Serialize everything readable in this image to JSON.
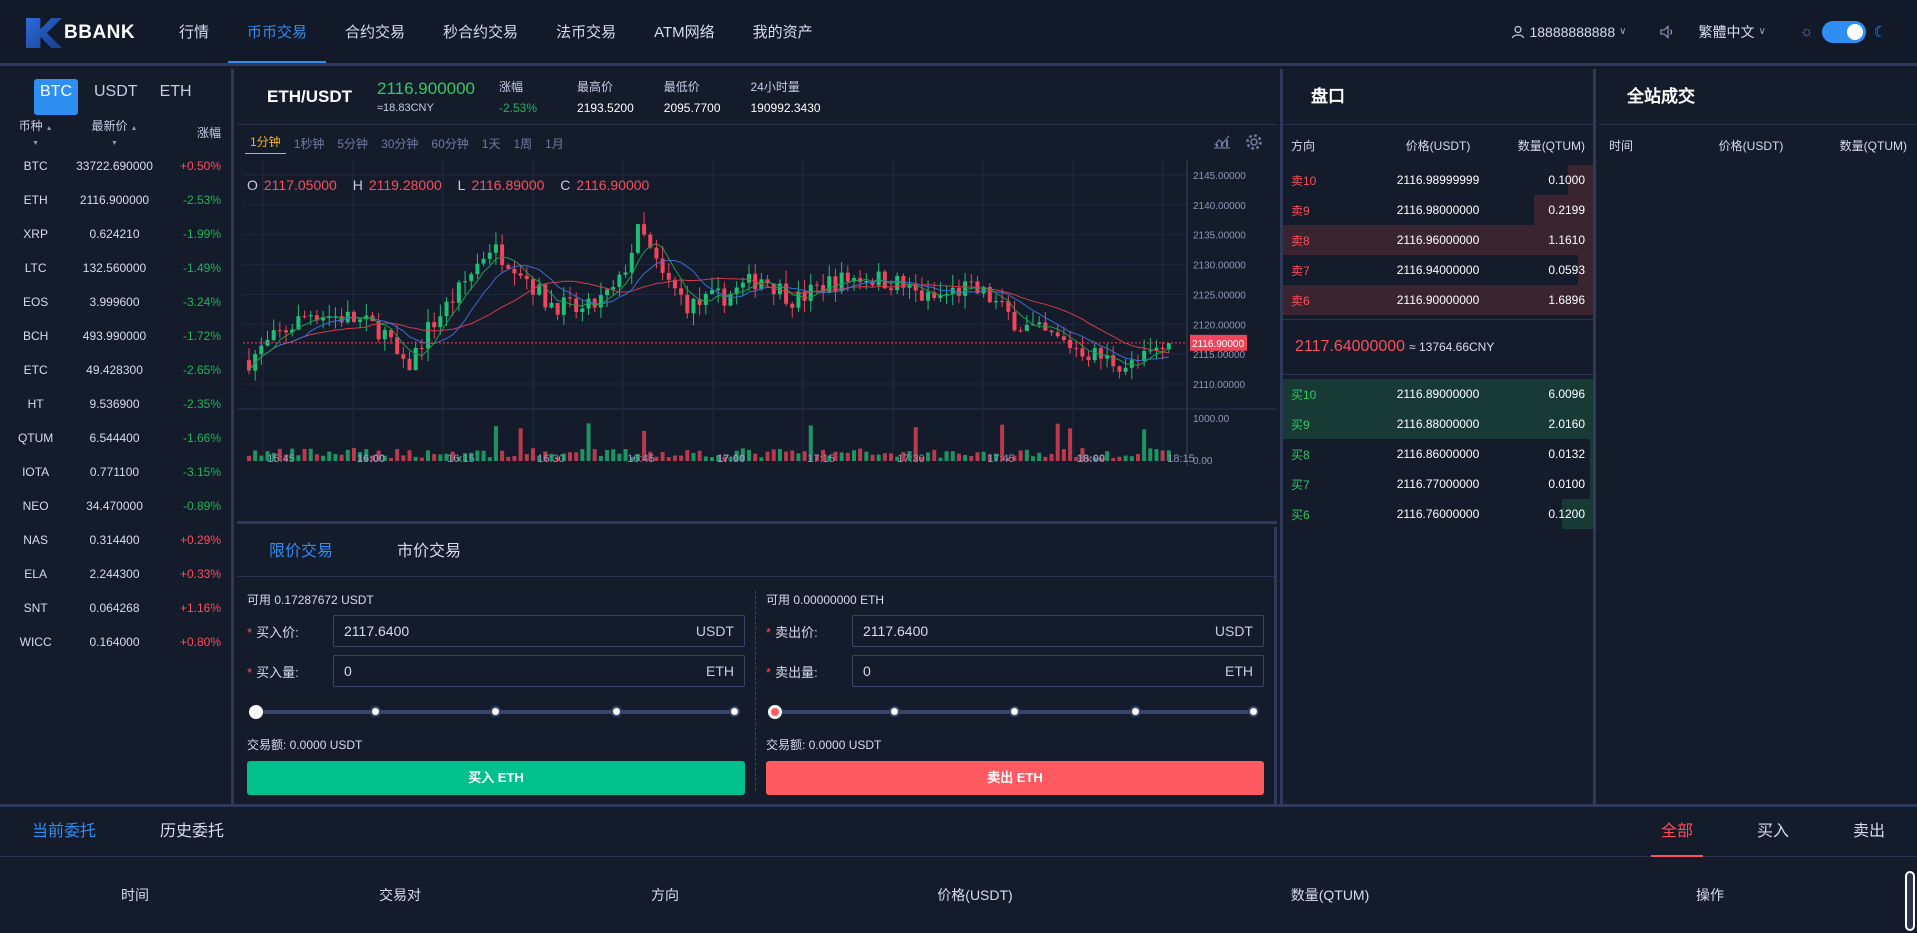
{
  "header": {
    "logo_text": "BBANK",
    "nav": [
      "行情",
      "币币交易",
      "合约交易",
      "秒合约交易",
      "法币交易",
      "ATM网络",
      "我的资产"
    ],
    "active_nav": 1,
    "user": "18888888888",
    "language": "繁體中文"
  },
  "market": {
    "tabs": [
      "BTC",
      "USDT",
      "ETH"
    ],
    "active_tab": 0,
    "columns": [
      "币种",
      "最新价",
      "涨幅"
    ],
    "rows": [
      {
        "sym": "BTC",
        "price": "33722.690000",
        "chg": "+0.50%",
        "dir": "up"
      },
      {
        "sym": "ETH",
        "price": "2116.900000",
        "chg": "-2.53%",
        "dir": "down"
      },
      {
        "sym": "XRP",
        "price": "0.624210",
        "chg": "-1.99%",
        "dir": "down"
      },
      {
        "sym": "LTC",
        "price": "132.560000",
        "chg": "-1.49%",
        "dir": "down"
      },
      {
        "sym": "EOS",
        "price": "3.999600",
        "chg": "-3.24%",
        "dir": "down"
      },
      {
        "sym": "BCH",
        "price": "493.990000",
        "chg": "-1.72%",
        "dir": "down"
      },
      {
        "sym": "ETC",
        "price": "49.428300",
        "chg": "-2.65%",
        "dir": "down"
      },
      {
        "sym": "HT",
        "price": "9.536900",
        "chg": "-2.35%",
        "dir": "down"
      },
      {
        "sym": "QTUM",
        "price": "6.544400",
        "chg": "-1.66%",
        "dir": "down"
      },
      {
        "sym": "IOTA",
        "price": "0.771100",
        "chg": "-3.15%",
        "dir": "down"
      },
      {
        "sym": "NEO",
        "price": "34.470000",
        "chg": "-0.89%",
        "dir": "down"
      },
      {
        "sym": "NAS",
        "price": "0.314400",
        "chg": "+0.29%",
        "dir": "up"
      },
      {
        "sym": "ELA",
        "price": "2.244300",
        "chg": "+0.33%",
        "dir": "up"
      },
      {
        "sym": "SNT",
        "price": "0.064268",
        "chg": "+1.16%",
        "dir": "up"
      },
      {
        "sym": "WICC",
        "price": "0.164000",
        "chg": "+0.80%",
        "dir": "up"
      }
    ]
  },
  "ticker": {
    "pair": "ETH/USDT",
    "price": "2116.900000",
    "cny": "≈18.83CNY",
    "change_label": "涨幅",
    "change": "-2.53%",
    "high_label": "最高价",
    "high": "2193.5200",
    "low_label": "最低价",
    "low": "2095.7700",
    "vol_label": "24小时量",
    "vol": "190992.3430"
  },
  "chart": {
    "intervals": [
      "1分钟",
      "1秒钟",
      "5分钟",
      "30分钟",
      "60分钟",
      "1天",
      "1周",
      "1月"
    ],
    "active_interval": 0,
    "ohlc": {
      "o": "2117.05000",
      "h": "2119.28000",
      "l": "2116.89000",
      "c": "2116.90000"
    },
    "last_label": "2116.90000",
    "last_value": 2116.9,
    "price_ticks": [
      "2145.00000",
      "2140.00000",
      "2135.00000",
      "2130.00000",
      "2125.00000",
      "2120.00000",
      "2115.00000",
      "2110.00000"
    ],
    "price_tick_values": [
      2145,
      2140,
      2135,
      2130,
      2125,
      2120,
      2115,
      2110
    ],
    "volume_ticks": [
      "1000.00",
      "0.00"
    ],
    "time_ticks": [
      "15:45",
      "16:00",
      "16:15",
      "16:30",
      "16:45",
      "17:00",
      "17:15",
      "17:30",
      "17:45",
      "18:00",
      "18:15"
    ],
    "colors": {
      "up": "#1fbf75",
      "down": "#f0455a",
      "ma1": "#d43a4a",
      "ma2": "#3b6fd0",
      "ma3": "#1f9e4a"
    }
  },
  "trade": {
    "tabs": [
      "限价交易",
      "市价交易"
    ],
    "active_tab": 0,
    "buy": {
      "avail": "可用 0.17287672 USDT",
      "price_label": "买入价:",
      "price": "2117.6400",
      "price_unit": "USDT",
      "qty_label": "买入量:",
      "qty": "0",
      "qty_unit": "ETH",
      "amount": "交易额: 0.0000 USDT",
      "button": "买入 ETH"
    },
    "sell": {
      "avail": "可用 0.00000000 ETH",
      "price_label": "卖出价:",
      "price": "2117.6400",
      "price_unit": "USDT",
      "qty_label": "卖出量:",
      "qty": "0",
      "qty_unit": "ETH",
      "amount": "交易额: 0.0000 USDT",
      "button": "卖出 ETH"
    }
  },
  "book": {
    "title": "盘口",
    "columns": [
      "方向",
      "价格(USDT)",
      "数量(QTUM)"
    ],
    "asks": [
      {
        "dir": "卖10",
        "price": "2116.98999999",
        "qty": "0.1000",
        "depth": 0.08
      },
      {
        "dir": "卖9",
        "price": "2116.98000000",
        "qty": "0.2199",
        "depth": 0.19
      },
      {
        "dir": "卖8",
        "price": "2116.96000000",
        "qty": "1.1610",
        "depth": 1.0
      },
      {
        "dir": "卖7",
        "price": "2116.94000000",
        "qty": "0.0593",
        "depth": 0.05
      },
      {
        "dir": "卖6",
        "price": "2116.90000000",
        "qty": "1.6896",
        "depth": 1.0
      }
    ],
    "mid_price": "2117.64000000",
    "mid_cny": "≈ 13764.66CNY",
    "bids": [
      {
        "dir": "买10",
        "price": "2116.89000000",
        "qty": "6.0096",
        "depth": 1.0
      },
      {
        "dir": "买9",
        "price": "2116.88000000",
        "qty": "2.0160",
        "depth": 1.0
      },
      {
        "dir": "买8",
        "price": "2116.86000000",
        "qty": "0.0132",
        "depth": 0.01
      },
      {
        "dir": "买7",
        "price": "2116.77000000",
        "qty": "0.0100",
        "depth": 0.01
      },
      {
        "dir": "买6",
        "price": "2116.76000000",
        "qty": "0.1200",
        "depth": 0.1
      }
    ]
  },
  "trades": {
    "title": "全站成交",
    "columns": [
      "时间",
      "价格(USDT)",
      "数量(QTUM)"
    ]
  },
  "orders": {
    "tabs": [
      "当前委托",
      "历史委托"
    ],
    "active_tab": 0,
    "filters": [
      "全部",
      "买入",
      "卖出"
    ],
    "active_filter": 0,
    "columns": [
      "时间",
      "交易对",
      "方向",
      "价格(USDT)",
      "数量(QTUM)",
      "操作"
    ]
  }
}
